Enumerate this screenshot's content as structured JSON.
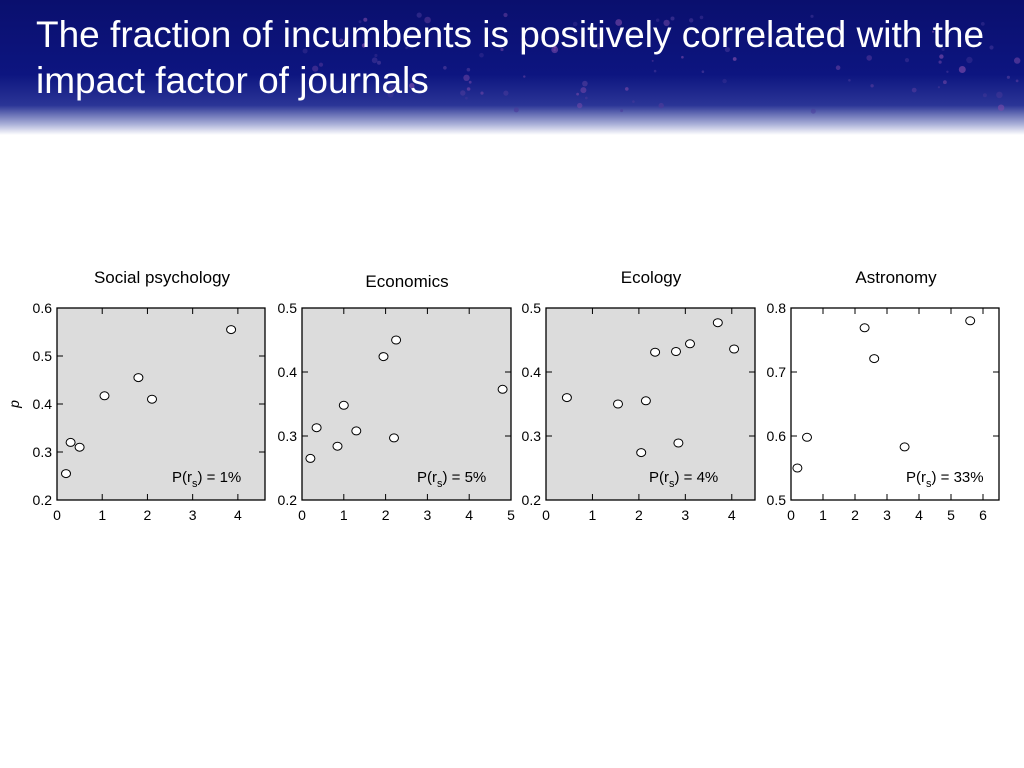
{
  "slide": {
    "title": "The fraction of incumbents is positively correlated with the impact factor of journals"
  },
  "colors": {
    "banner": "#0d1580",
    "plot_background": "#dcdcdc",
    "plot_background_astronomy": "#ffffff",
    "marker_fill": "#ffffff",
    "marker_stroke": "#000000"
  },
  "chart_data": [
    {
      "type": "scatter",
      "title": "Social psychology",
      "ylabel": "p",
      "xlim": [
        0,
        4.6
      ],
      "ylim": [
        0.2,
        0.6
      ],
      "xticks": [
        0,
        1,
        2,
        3,
        4
      ],
      "yticks": [
        0.2,
        0.3,
        0.4,
        0.5,
        0.6
      ],
      "ytick_labels": [
        "0.2",
        "0.3",
        "0.4",
        "0.5",
        "0.6"
      ],
      "background": "gray",
      "annotation": {
        "prefix": "P(r",
        "subscript": "s",
        "suffix": ") = 1%"
      },
      "x": [
        0.2,
        0.3,
        0.5,
        1.05,
        1.8,
        2.1,
        3.85
      ],
      "y": [
        0.255,
        0.32,
        0.31,
        0.417,
        0.455,
        0.41,
        0.555
      ]
    },
    {
      "type": "scatter",
      "title": "Economics",
      "ylabel": "",
      "xlim": [
        0,
        5
      ],
      "ylim": [
        0.2,
        0.5
      ],
      "xticks": [
        0,
        1,
        2,
        3,
        4,
        5
      ],
      "yticks": [
        0.2,
        0.3,
        0.4,
        0.5
      ],
      "ytick_labels": [
        "0.2",
        "0.3",
        "0.4",
        "0.5"
      ],
      "background": "gray",
      "annotation": {
        "prefix": "P(r",
        "subscript": "s",
        "suffix": ") = 5%"
      },
      "x": [
        0.2,
        0.35,
        0.85,
        1.0,
        1.3,
        1.95,
        2.2,
        2.25,
        4.8
      ],
      "y": [
        0.265,
        0.313,
        0.284,
        0.348,
        0.308,
        0.424,
        0.297,
        0.45,
        0.373
      ]
    },
    {
      "type": "scatter",
      "title": "Ecology",
      "ylabel": "",
      "xlim": [
        0,
        4.5
      ],
      "ylim": [
        0.2,
        0.5
      ],
      "xticks": [
        0,
        1,
        2,
        3,
        4
      ],
      "yticks": [
        0.2,
        0.3,
        0.4,
        0.5
      ],
      "ytick_labels": [
        "0.2",
        "0.3",
        "0.4",
        "0.5"
      ],
      "background": "gray",
      "annotation": {
        "prefix": "P(r",
        "subscript": "s",
        "suffix": ") = 4%"
      },
      "x": [
        0.45,
        1.55,
        2.05,
        2.15,
        2.35,
        2.8,
        2.85,
        3.1,
        3.7,
        4.05
      ],
      "y": [
        0.36,
        0.35,
        0.274,
        0.355,
        0.431,
        0.432,
        0.289,
        0.444,
        0.477,
        0.436
      ]
    },
    {
      "type": "scatter",
      "title": "Astronomy",
      "ylabel": "",
      "xlim": [
        0,
        6.5
      ],
      "ylim": [
        0.5,
        0.8
      ],
      "xticks": [
        0,
        1,
        2,
        3,
        4,
        5,
        6
      ],
      "yticks": [
        0.5,
        0.6,
        0.7,
        0.8
      ],
      "ytick_labels": [
        "0.5",
        "0.6",
        "0.7",
        "0.8"
      ],
      "background": "white",
      "annotation": {
        "prefix": "P(r",
        "subscript": "s",
        "suffix": ") = 33%"
      },
      "x": [
        0.2,
        0.5,
        2.3,
        2.6,
        3.55,
        5.6
      ],
      "y": [
        0.55,
        0.598,
        0.769,
        0.721,
        0.583,
        0.78
      ]
    }
  ]
}
